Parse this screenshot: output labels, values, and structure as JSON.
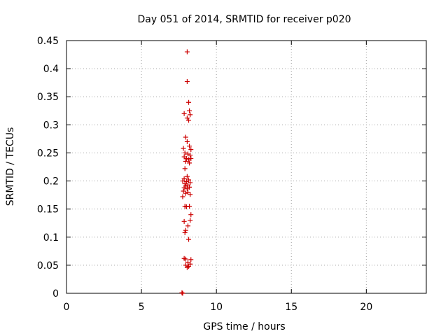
{
  "chart_data": {
    "type": "scatter",
    "title": "Day 051 of 2014, SRMTID for receiver p020",
    "xlabel": "GPS time / hours",
    "ylabel": "SRMTID / TECUs",
    "xlim": [
      0,
      24
    ],
    "ylim": [
      0,
      0.45
    ],
    "xticks": [
      0,
      5,
      10,
      15,
      20
    ],
    "yticks": [
      0,
      0.05,
      0.1,
      0.15,
      0.2,
      0.25,
      0.3,
      0.35,
      0.4,
      0.45
    ],
    "grid": true,
    "marker": "plus",
    "color": "#cc0000",
    "points": [
      [
        8.05,
        0.43
      ],
      [
        8.05,
        0.377
      ],
      [
        8.15,
        0.34
      ],
      [
        8.2,
        0.325
      ],
      [
        8.25,
        0.318
      ],
      [
        7.85,
        0.32
      ],
      [
        8.05,
        0.312
      ],
      [
        8.15,
        0.308
      ],
      [
        7.95,
        0.278
      ],
      [
        8.05,
        0.27
      ],
      [
        8.2,
        0.262
      ],
      [
        7.8,
        0.258
      ],
      [
        8.3,
        0.256
      ],
      [
        7.9,
        0.25
      ],
      [
        8.1,
        0.248
      ],
      [
        8.25,
        0.246
      ],
      [
        7.85,
        0.243
      ],
      [
        8.0,
        0.24
      ],
      [
        8.15,
        0.238
      ],
      [
        8.3,
        0.24
      ],
      [
        7.95,
        0.235
      ],
      [
        8.2,
        0.232
      ],
      [
        7.9,
        0.222
      ],
      [
        8.05,
        0.208
      ],
      [
        7.85,
        0.204
      ],
      [
        8.15,
        0.202
      ],
      [
        7.75,
        0.2
      ],
      [
        8.0,
        0.199
      ],
      [
        8.25,
        0.197
      ],
      [
        7.9,
        0.195
      ],
      [
        8.1,
        0.193
      ],
      [
        7.95,
        0.191
      ],
      [
        8.2,
        0.189
      ],
      [
        7.85,
        0.188
      ],
      [
        8.05,
        0.186
      ],
      [
        7.8,
        0.182
      ],
      [
        8.1,
        0.18
      ],
      [
        7.95,
        0.178
      ],
      [
        8.25,
        0.176
      ],
      [
        7.75,
        0.172
      ],
      [
        7.9,
        0.155
      ],
      [
        8.0,
        0.154
      ],
      [
        8.2,
        0.155
      ],
      [
        8.3,
        0.14
      ],
      [
        8.25,
        0.13
      ],
      [
        7.85,
        0.128
      ],
      [
        8.1,
        0.12
      ],
      [
        7.95,
        0.112
      ],
      [
        7.9,
        0.108
      ],
      [
        8.15,
        0.096
      ],
      [
        7.85,
        0.062
      ],
      [
        7.95,
        0.061
      ],
      [
        8.3,
        0.06
      ],
      [
        8.1,
        0.055
      ],
      [
        8.25,
        0.052
      ],
      [
        7.95,
        0.05
      ],
      [
        8.15,
        0.048
      ],
      [
        8.05,
        0.046
      ],
      [
        7.7,
        0.001
      ],
      [
        7.75,
        0.0
      ]
    ]
  }
}
